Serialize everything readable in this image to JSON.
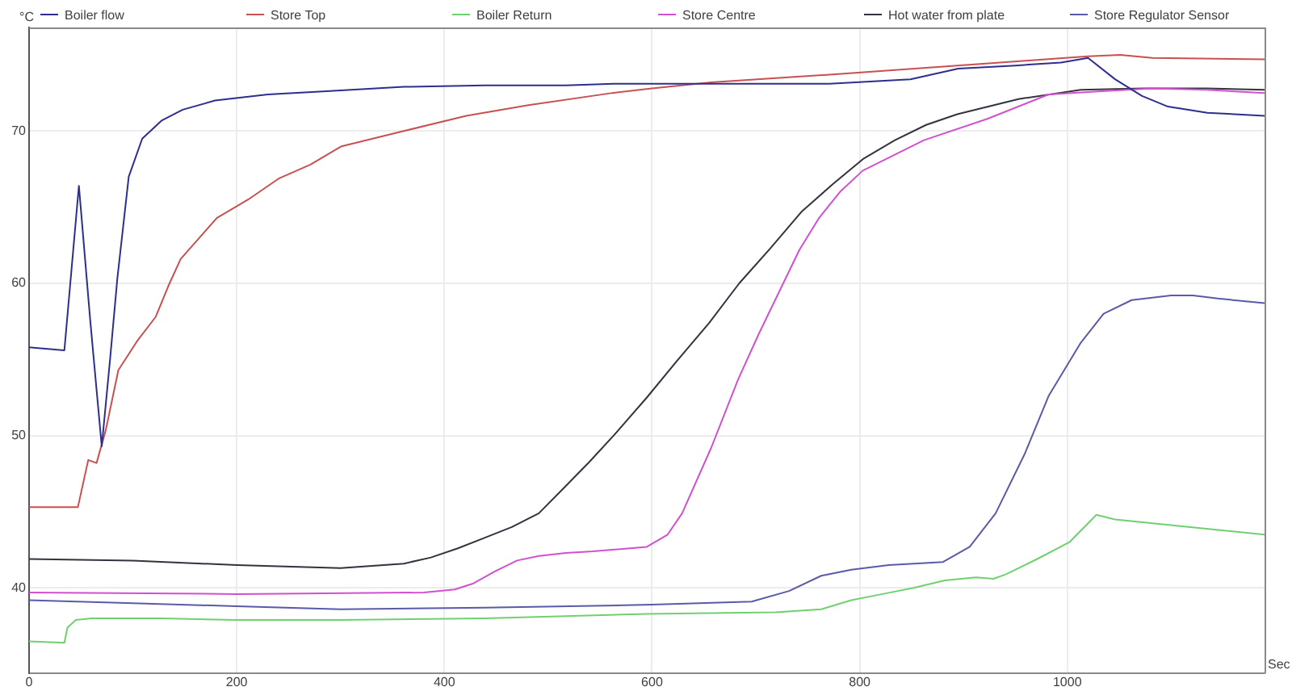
{
  "chart_data": {
    "type": "line",
    "xlabel": "Sec",
    "ylabel": "°C",
    "xlim": [
      0,
      1190
    ],
    "xticks": [
      0,
      200,
      400,
      600,
      800,
      1000
    ],
    "ylim": [
      34.4,
      76.8
    ],
    "yticks": [
      40,
      50,
      60,
      70
    ],
    "grid": true,
    "legend": "top",
    "marker": "none",
    "line_style": "solid",
    "series": [
      {
        "name": "Boiler flow",
        "color": "#2e2e8e",
        "x": [
          0,
          34,
          41,
          48,
          59,
          70,
          78,
          85,
          96,
          109,
          128,
          148,
          179,
          230,
          283,
          361,
          439,
          517,
          563,
          650,
          771,
          849,
          895,
          950,
          994,
          1020,
          1046,
          1072,
          1097,
          1135,
          1190
        ],
        "values": [
          55.8,
          55.6,
          61,
          66.4,
          57.5,
          49.3,
          55.0,
          60.3,
          67.0,
          69.5,
          70.7,
          71.4,
          72.0,
          72.4,
          72.6,
          72.9,
          73.0,
          73.0,
          73.1,
          73.1,
          73.1,
          73.4,
          74.1,
          74.3,
          74.5,
          74.8,
          73.4,
          72.3,
          71.6,
          71.2,
          71.0
        ]
      },
      {
        "name": "Store Top",
        "color": "#c85050",
        "x": [
          0,
          47,
          57,
          65,
          74,
          86,
          104,
          122,
          134,
          146,
          181,
          211,
          241,
          271,
          301,
          361,
          421,
          481,
          562,
          600,
          657,
          771,
          875,
          957,
          1020,
          1051,
          1082,
          1190
        ],
        "values": [
          45.3,
          45.3,
          48.4,
          48.2,
          50.4,
          54.3,
          56.2,
          57.8,
          59.8,
          61.6,
          64.3,
          65.5,
          66.9,
          67.8,
          69.0,
          70.0,
          71.0,
          71.7,
          72.5,
          72.8,
          73.2,
          73.7,
          74.2,
          74.6,
          74.9,
          75.0,
          74.8,
          74.7
        ]
      },
      {
        "name": "Boiler Return",
        "color": "#70d070",
        "x": [
          0,
          34,
          37,
          45,
          60,
          128,
          200,
          300,
          439,
          595,
          719,
          763,
          792,
          822,
          852,
          882,
          912,
          929,
          941,
          971,
          1002,
          1028,
          1046,
          1190
        ],
        "values": [
          36.5,
          36.4,
          37.4,
          37.9,
          38.0,
          38.0,
          37.9,
          37.9,
          38.0,
          38.3,
          38.4,
          38.6,
          39.2,
          39.6,
          40.0,
          40.5,
          40.7,
          40.6,
          40.9,
          41.9,
          43.0,
          44.8,
          44.5,
          43.5
        ]
      },
      {
        "name": "Store Centre",
        "color": "#d050d0",
        "x": [
          0,
          200,
          380,
          410,
          428,
          449,
          470,
          491,
          517,
          543,
          595,
          615,
          629,
          657,
          683,
          703,
          725,
          742,
          761,
          781,
          803,
          862,
          923,
          982,
          1030,
          1082,
          1134,
          1190
        ],
        "values": [
          39.7,
          39.6,
          39.7,
          39.9,
          40.3,
          41.1,
          41.8,
          42.1,
          42.3,
          42.4,
          42.7,
          43.5,
          44.9,
          49.2,
          53.7,
          56.7,
          59.8,
          62.2,
          64.3,
          66.0,
          67.4,
          69.4,
          70.8,
          72.4,
          72.6,
          72.8,
          72.7,
          72.5
        ]
      },
      {
        "name": "Hot water from plate",
        "color": "#333340",
        "x": [
          0,
          100,
          200,
          300,
          361,
          387,
          413,
          439,
          465,
          491,
          517,
          540,
          563,
          595,
          624,
          655,
          684,
          714,
          744,
          774,
          804,
          834,
          864,
          894,
          953,
          1013,
          1073,
          1134,
          1190
        ],
        "values": [
          41.9,
          41.8,
          41.5,
          41.3,
          41.6,
          42.0,
          42.6,
          43.3,
          44.0,
          44.9,
          46.7,
          48.3,
          50.0,
          52.5,
          54.9,
          57.4,
          60.0,
          62.3,
          64.7,
          66.5,
          68.2,
          69.4,
          70.4,
          71.1,
          72.1,
          72.7,
          72.8,
          72.8,
          72.7
        ]
      },
      {
        "name": "Store Regulator Sensor",
        "color": "#5a5aa8",
        "x": [
          0,
          100,
          200,
          300,
          439,
          600,
          696,
          732,
          763,
          792,
          828,
          880,
          906,
          931,
          959,
          982,
          1013,
          1035,
          1062,
          1100,
          1121,
          1145,
          1190
        ],
        "values": [
          39.2,
          39.0,
          38.8,
          38.6,
          38.7,
          38.9,
          39.1,
          39.8,
          40.8,
          41.2,
          41.5,
          41.7,
          42.7,
          44.9,
          48.8,
          52.6,
          56.1,
          58.0,
          58.9,
          59.2,
          59.2,
          59.0,
          58.7
        ]
      }
    ]
  }
}
